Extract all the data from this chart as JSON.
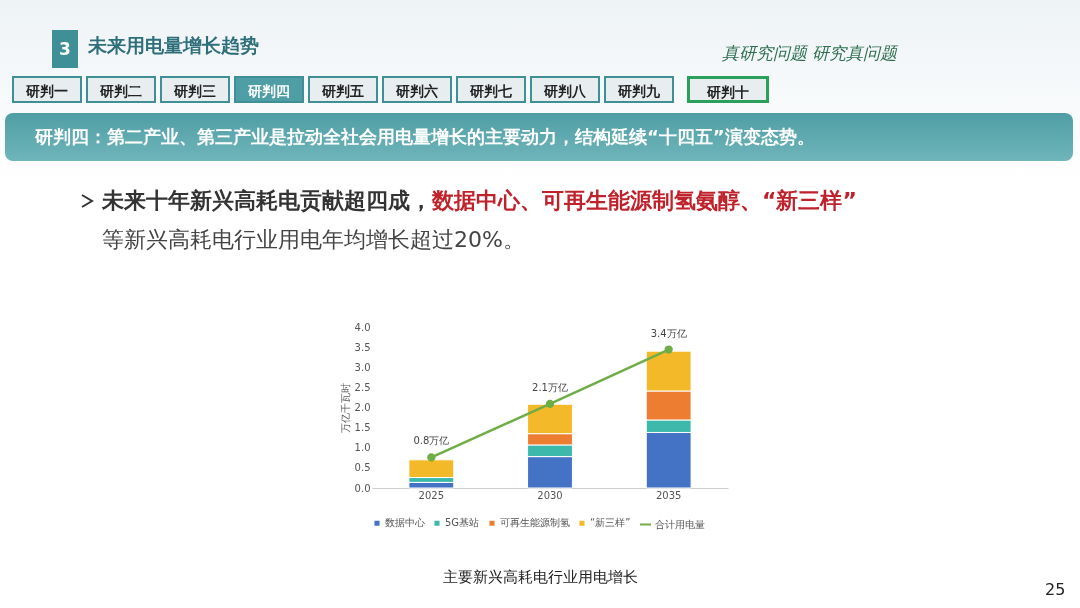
{
  "chart_data": {
    "type": "bar",
    "title": "未来用电量增长趋势",
    "stacked": true,
    "ylabel": "万亿千瓦时",
    "categories": [
      "2025",
      "2030",
      "2035"
    ],
    "series": [
      {
        "name": "数据中心",
        "color": "#4472c4",
        "values": [
          0.14,
          0.78,
          1.38
        ]
      },
      {
        "name": "5G基站",
        "color": "#3cb9ab",
        "values": [
          0.12,
          0.29,
          0.31
        ]
      },
      {
        "name": "可再生能源制氢",
        "color": "#ed7d31",
        "values": [
          null,
          0.28,
          0.72
        ]
      },
      {
        "name": "“新三样”",
        "color": "#f4b928",
        "values": [
          0.44,
          0.73,
          0.99
        ]
      },
      {
        "name": "合计用电量",
        "type": "line",
        "color": "#70ad47",
        "values": [
          0.76,
          2.09,
          3.44
        ],
        "value_labels": [
          "0.8万亿",
          "2.1万亿",
          "3.4万亿"
        ]
      }
    ],
    "ylim": [
      0,
      4
    ],
    "yticks": [
      {
        "value": 0,
        "label": "0.0"
      },
      {
        "value": 0.5,
        "label": "0.5"
      },
      {
        "value": 1,
        "label": "1.0"
      },
      {
        "value": 1.5,
        "label": "1.5"
      },
      {
        "value": 2,
        "label": "2.0"
      },
      {
        "value": 2.5,
        "label": "2.5"
      },
      {
        "value": 3,
        "label": "3.0"
      },
      {
        "value": 3.5,
        "label": "3.5"
      },
      {
        "value": 4,
        "label": "4.0"
      }
    ],
    "legend": "bottom",
    "marker": "circle",
    "annotations": [
      "3",
      "真研究问题 研究真问题",
      "研判一",
      "研判二",
      "研判三",
      "研判四",
      "研判五",
      "研判六",
      "研判七",
      "研判八",
      "研判九",
      "研判十",
      "研判四：第二产业、第三产业是拉动全社会用电量增长的主要动力，结构延续“十四五”演变态势。",
      "未来十年新兴高耗电贡献超四成，",
      "数据中心、可再生能源制氢氨醇、“新三样”",
      "等新兴高耗电行业用电年均增长超过20%。",
      "主要新兴高耗电行业用电增长",
      "25"
    ]
  }
}
